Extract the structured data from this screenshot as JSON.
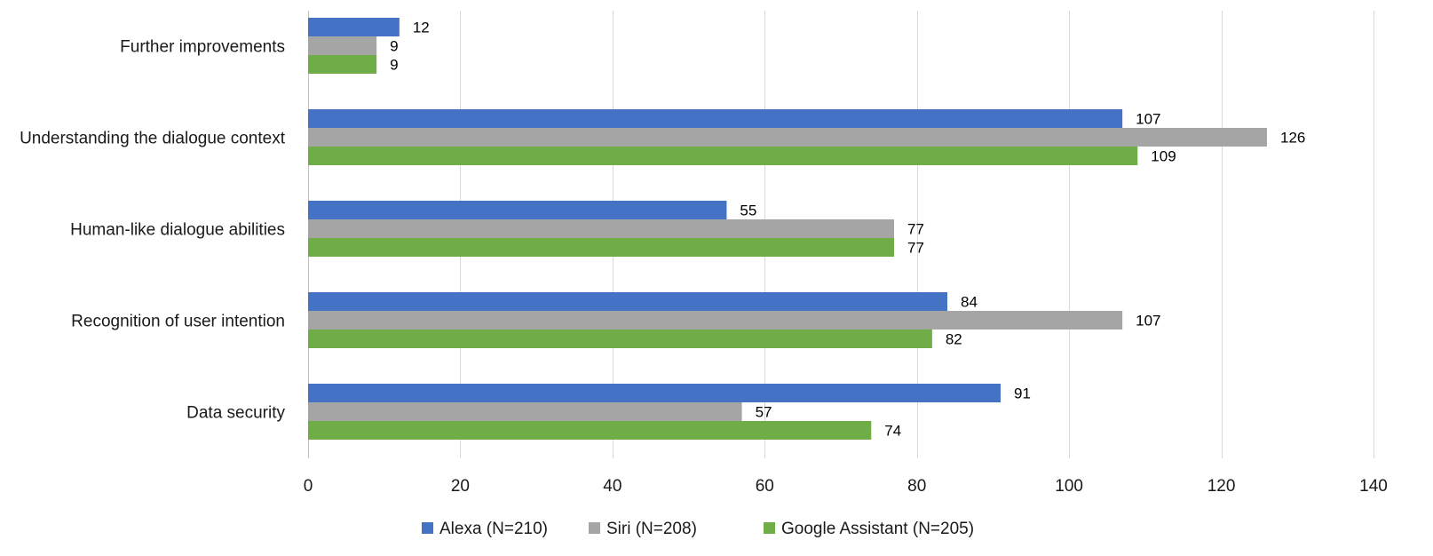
{
  "chart_data": {
    "type": "bar",
    "orientation": "horizontal",
    "title": "",
    "xlabel": "",
    "ylabel": "",
    "xlim": [
      0,
      140
    ],
    "x_ticks": [
      0,
      20,
      40,
      60,
      80,
      100,
      120,
      140
    ],
    "grid": true,
    "legend_position": "bottom",
    "categories": [
      "Further improvements",
      "Understanding the dialogue context",
      "Human-like dialogue abilities",
      "Recognition of user intention",
      "Data security"
    ],
    "series": [
      {
        "name": "Alexa (N=210)",
        "color": "#4472c4",
        "values": [
          12,
          107,
          55,
          84,
          91
        ]
      },
      {
        "name": "Siri (N=208)",
        "color": "#a5a5a5",
        "values": [
          9,
          126,
          77,
          107,
          57
        ]
      },
      {
        "name": "Google Assistant (N=205)",
        "color": "#70ad47",
        "values": [
          9,
          109,
          77,
          82,
          74
        ]
      }
    ]
  }
}
